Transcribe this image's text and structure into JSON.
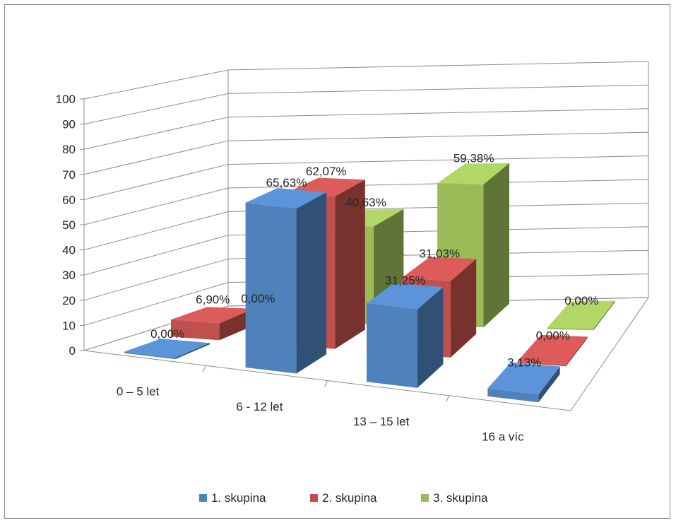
{
  "chart_data": {
    "type": "bar",
    "title": "",
    "xlabel": "",
    "ylabel": "",
    "ylim": [
      0,
      100
    ],
    "y_ticks": [
      0,
      10,
      20,
      30,
      40,
      50,
      60,
      70,
      80,
      90,
      100
    ],
    "categories": [
      "0 – 5 let",
      "6 - 12 let",
      "13 – 15 let",
      "16 a víc"
    ],
    "series": [
      {
        "name": "1. skupina",
        "color": "#4f81bd",
        "values": [
          0.0,
          65.63,
          31.25,
          3.13
        ],
        "labels": [
          "0,00%",
          "65,63%",
          "31,25%",
          "3,13%"
        ]
      },
      {
        "name": "2. skupina",
        "color": "#c0504d",
        "values": [
          6.9,
          62.07,
          31.03,
          0.0
        ],
        "labels": [
          "6,90%",
          "62,07%",
          "31,03%",
          "0,00%"
        ]
      },
      {
        "name": "3. skupina",
        "color": "#9bbb59",
        "values": [
          0.0,
          40.63,
          59.38,
          0.0
        ],
        "labels": [
          "0,00%",
          "40,63%",
          "59,38%",
          "0,00%"
        ]
      }
    ],
    "grid": true,
    "legend_position": "bottom",
    "style": "3d-clustered-column"
  }
}
